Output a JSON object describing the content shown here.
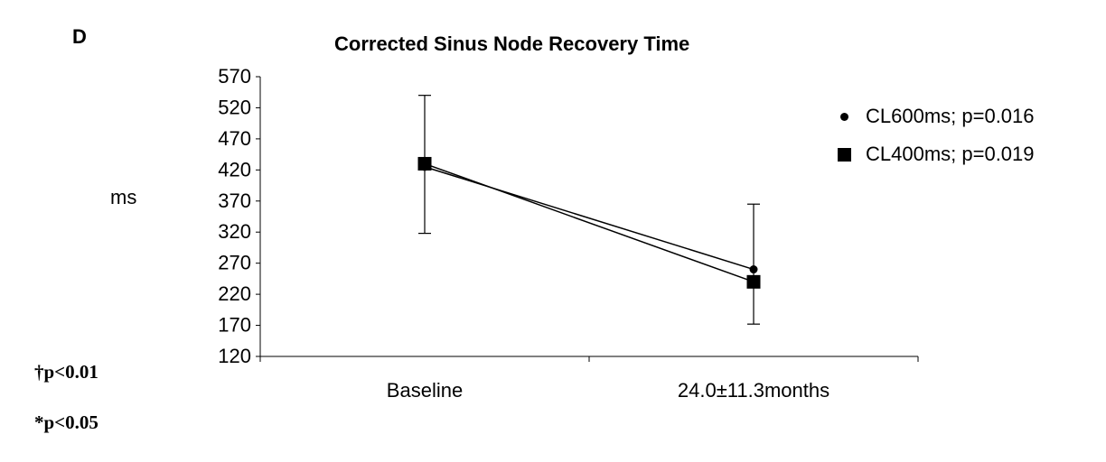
{
  "panel_label": "D",
  "footnotes": [
    "†p<0.01",
    "*p<0.05"
  ],
  "chart_data": {
    "type": "line",
    "title": "Corrected Sinus Node Recovery Time",
    "xlabel": "",
    "ylabel": "ms",
    "categories": [
      "Baseline",
      "24.0±11.3months"
    ],
    "ylim": [
      120,
      570
    ],
    "yticks": [
      120,
      170,
      220,
      270,
      320,
      370,
      420,
      470,
      520,
      570
    ],
    "grid": false,
    "legend_position": "top-right",
    "series": [
      {
        "name": "CL600ms; p=0.016",
        "marker": "circle",
        "values": [
          425,
          260
        ],
        "error_upper": [
          540,
          365
        ],
        "error_lower": [
          318,
          172
        ]
      },
      {
        "name": "CL400ms; p=0.019",
        "marker": "square",
        "values": [
          430,
          240
        ]
      }
    ]
  }
}
